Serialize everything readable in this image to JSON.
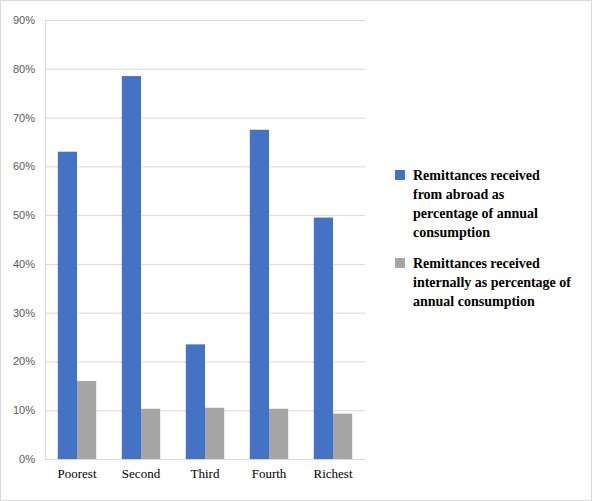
{
  "chart_data": {
    "type": "bar",
    "categories": [
      "Poorest",
      "Second",
      "Third",
      "Fourth",
      "Richest"
    ],
    "series": [
      {
        "name": "Remittances received from abroad as percentage of annual consumption",
        "color": "#4472c4",
        "values": [
          63,
          78.5,
          23.5,
          67.5,
          49.5
        ]
      },
      {
        "name": "Remittances received internally as percentage of annual consumption",
        "color": "#a5a5a5",
        "values": [
          16,
          10.3,
          10.5,
          10.3,
          9.3
        ]
      }
    ],
    "ylim": [
      0,
      90
    ],
    "yticks": [
      {
        "value": 0,
        "label": "0%"
      },
      {
        "value": 10,
        "label": "10%"
      },
      {
        "value": 20,
        "label": "20%"
      },
      {
        "value": 30,
        "label": "30%"
      },
      {
        "value": 40,
        "label": "40%"
      },
      {
        "value": 50,
        "label": "50%"
      },
      {
        "value": 60,
        "label": "60%"
      },
      {
        "value": 70,
        "label": "70%"
      },
      {
        "value": 80,
        "label": "80%"
      },
      {
        "value": 90,
        "label": "90%"
      }
    ],
    "grid": true,
    "legend": "right"
  }
}
